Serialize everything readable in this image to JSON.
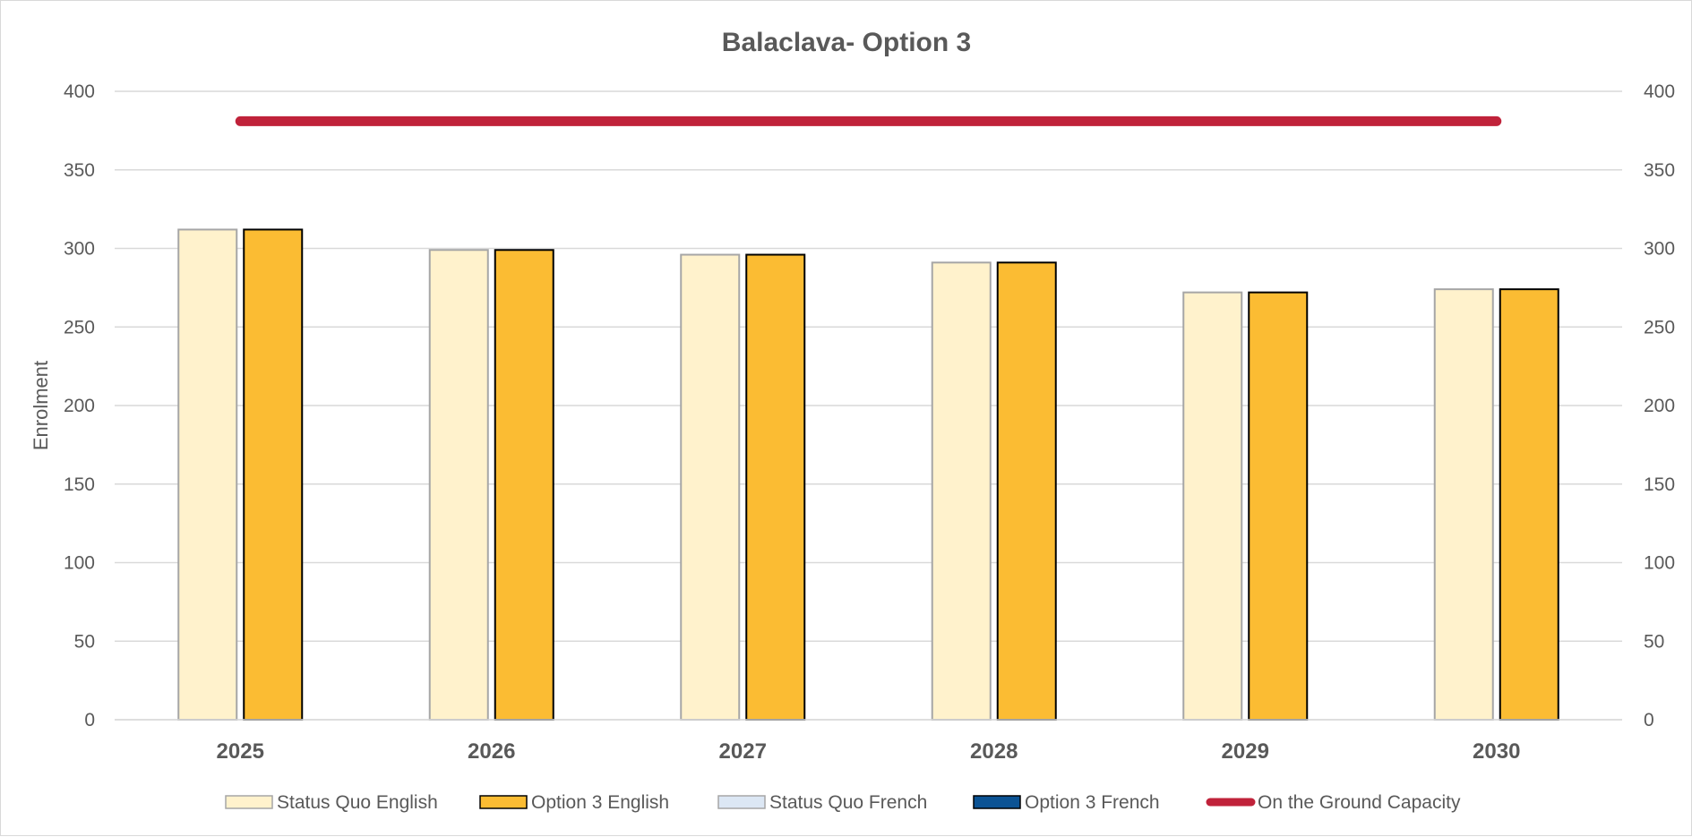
{
  "chart_data": {
    "type": "bar",
    "title": "Balaclava- Option 3",
    "ylabel": "Enrolment",
    "xlabel": "",
    "ylim": [
      0,
      400
    ],
    "y_ticks": [
      0,
      50,
      100,
      150,
      200,
      250,
      300,
      350,
      400
    ],
    "secondary_y_ticks": [
      0,
      50,
      100,
      150,
      200,
      250,
      300,
      350,
      400
    ],
    "categories": [
      "2025",
      "2026",
      "2027",
      "2028",
      "2029",
      "2030"
    ],
    "series": [
      {
        "name": "Status Quo English",
        "kind": "bar",
        "values": [
          312,
          299,
          296,
          291,
          272,
          274
        ],
        "fill": "#FFF2CC",
        "stroke": "#A6A6A6"
      },
      {
        "name": "Option 3 English",
        "kind": "bar",
        "values": [
          312,
          299,
          296,
          291,
          272,
          274
        ],
        "fill": "#FBBC33",
        "stroke": "#000000"
      },
      {
        "name": "Status Quo French",
        "kind": "bar",
        "values": [
          0,
          0,
          0,
          0,
          0,
          0
        ],
        "fill": "#DCE7F4",
        "stroke": "#A6A6A6"
      },
      {
        "name": "Option 3 French",
        "kind": "bar",
        "values": [
          0,
          0,
          0,
          0,
          0,
          0
        ],
        "fill": "#0B5394",
        "stroke": "#000000"
      },
      {
        "name": "On the Ground Capacity",
        "kind": "line",
        "values": [
          381,
          381,
          381,
          381,
          381,
          381
        ],
        "color": "#C0223A"
      }
    ],
    "grid": true,
    "legend": "bottom"
  }
}
